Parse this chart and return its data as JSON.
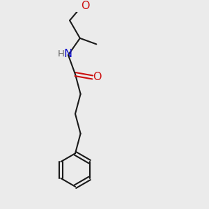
{
  "bg_color": "#ebebeb",
  "bond_color": "#1a1a1a",
  "N_color": "#1010cc",
  "O_color": "#cc1010",
  "line_width": 1.5,
  "font_size_atoms": 10.5,
  "fig_size": [
    3.0,
    3.0
  ],
  "dpi": 100,
  "xlim": [
    0,
    10
  ],
  "ylim": [
    0,
    10
  ]
}
